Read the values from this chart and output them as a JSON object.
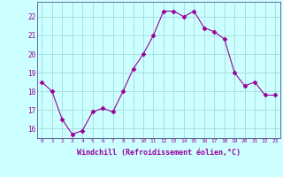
{
  "x": [
    0,
    1,
    2,
    3,
    4,
    5,
    6,
    7,
    8,
    9,
    10,
    11,
    12,
    13,
    14,
    15,
    16,
    17,
    18,
    19,
    20,
    21,
    22,
    23
  ],
  "y": [
    18.5,
    18.0,
    16.5,
    15.7,
    15.9,
    16.9,
    17.1,
    16.9,
    18.0,
    19.2,
    20.0,
    21.0,
    22.3,
    22.3,
    22.0,
    22.3,
    21.4,
    21.2,
    20.8,
    19.0,
    18.3,
    18.5,
    17.8,
    17.8
  ],
  "line_color": "#990099",
  "marker": "D",
  "marker_size": 2.5,
  "bg_color": "#ccffff",
  "grid_color": "#aadddd",
  "xlabel": "Windchill (Refroidissement éolien,°C)",
  "xlabel_color": "#990099",
  "tick_color": "#990099",
  "ylim": [
    15.5,
    22.8
  ],
  "xlim": [
    -0.5,
    23.5
  ],
  "yticks": [
    16,
    17,
    18,
    19,
    20,
    21,
    22
  ],
  "xticks": [
    0,
    1,
    2,
    3,
    4,
    5,
    6,
    7,
    8,
    9,
    10,
    11,
    12,
    13,
    14,
    15,
    16,
    17,
    18,
    19,
    20,
    21,
    22,
    23
  ],
  "xtick_labels": [
    "0",
    "1",
    "2",
    "3",
    "4",
    "5",
    "6",
    "7",
    "8",
    "9",
    "10",
    "11",
    "12",
    "13",
    "14",
    "15",
    "16",
    "17",
    "18",
    "19",
    "20",
    "21",
    "22",
    "23"
  ],
  "spine_color": "#666699",
  "title": ""
}
